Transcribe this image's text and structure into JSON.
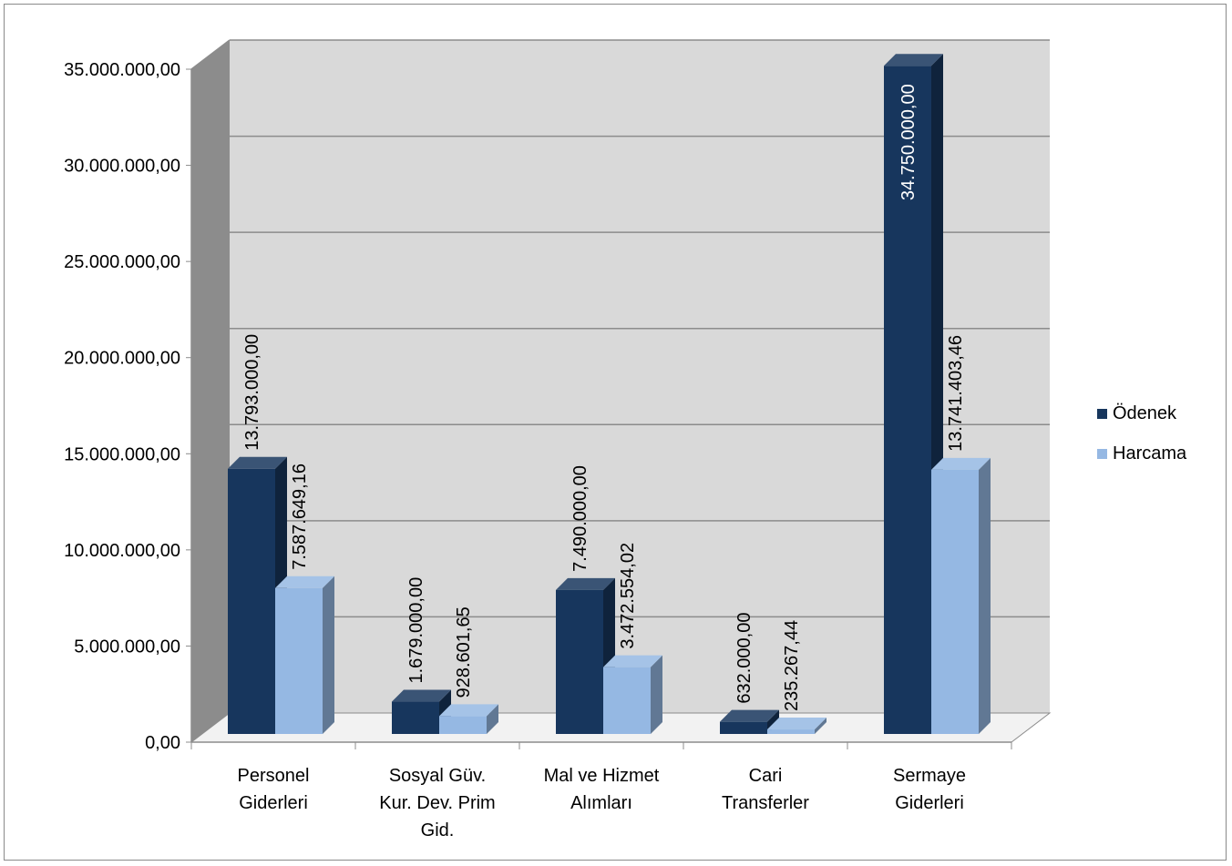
{
  "chart_data": {
    "type": "bar",
    "categories": [
      [
        "Personel",
        "Giderleri"
      ],
      [
        "Sosyal Güv.",
        "Kur. Dev. Prim",
        "Gid."
      ],
      [
        "Mal ve Hizmet",
        "Alımları"
      ],
      [
        "Cari",
        "Transferler"
      ],
      [
        "Sermaye",
        "Giderleri"
      ]
    ],
    "series": [
      {
        "name": "Ödenek",
        "color": "#17365d",
        "values": [
          13793000.0,
          1679000.0,
          7490000.0,
          632000.0,
          34750000.0
        ],
        "labels": [
          "13.793.000,00",
          "1.679.000,00",
          "7.490.000,00",
          "632.000,00",
          "34.750.000,00"
        ]
      },
      {
        "name": "Harcama",
        "color": "#95b8e3",
        "values": [
          7587649.16,
          928601.65,
          3472554.02,
          235267.44,
          13741403.46
        ],
        "labels": [
          "7.587.649,16",
          "928.601,65",
          "3.472.554,02",
          "235.267,44",
          "13.741.403,46"
        ]
      }
    ],
    "yticks": [
      "0,00",
      "5.000.000,00",
      "10.000.000,00",
      "15.000.000,00",
      "20.000.000,00",
      "25.000.000,00",
      "30.000.000,00",
      "35.000.000,00"
    ],
    "ylim": [
      0,
      35000000
    ],
    "ystep": 5000000,
    "grid": true,
    "legend_position": "right",
    "style": "3d-clustered-column"
  }
}
